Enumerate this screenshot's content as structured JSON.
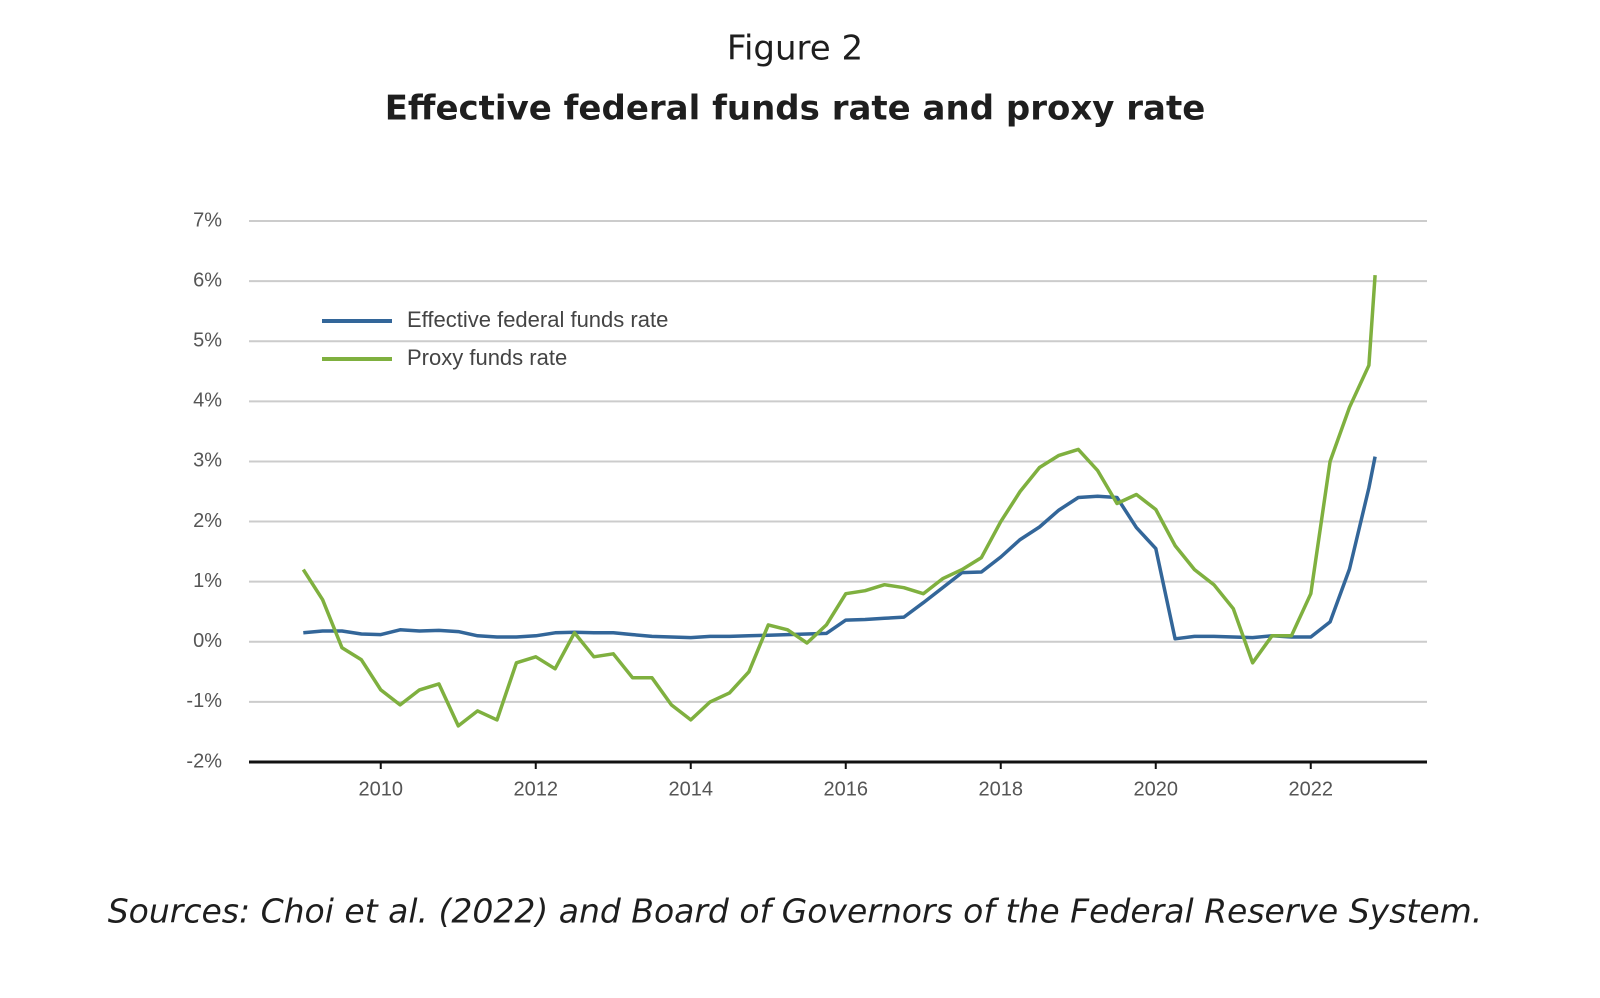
{
  "chart_data": {
    "type": "line",
    "figure_label": "Figure 2",
    "title": "Effective federal funds rate and proxy rate",
    "source": "Sources: Choi et al. (2022) and Board of Governors of the Federal Reserve System.",
    "x": [
      2009.0,
      2009.25,
      2009.5,
      2009.75,
      2010.0,
      2010.25,
      2010.5,
      2010.75,
      2011.0,
      2011.25,
      2011.5,
      2011.75,
      2012.0,
      2012.25,
      2012.5,
      2012.75,
      2013.0,
      2013.25,
      2013.5,
      2013.75,
      2014.0,
      2014.25,
      2014.5,
      2014.75,
      2015.0,
      2015.25,
      2015.5,
      2015.75,
      2016.0,
      2016.25,
      2016.5,
      2016.75,
      2017.0,
      2017.25,
      2017.5,
      2017.75,
      2018.0,
      2018.25,
      2018.5,
      2018.75,
      2019.0,
      2019.25,
      2019.5,
      2019.75,
      2020.0,
      2020.25,
      2020.5,
      2020.75,
      2021.0,
      2021.25,
      2021.5,
      2021.75,
      2022.0,
      2022.25,
      2022.5,
      2022.75,
      2022.83
    ],
    "series": [
      {
        "name": "Effective federal funds rate",
        "color": "#336699",
        "values": [
          0.15,
          0.18,
          0.18,
          0.13,
          0.12,
          0.2,
          0.18,
          0.19,
          0.17,
          0.1,
          0.08,
          0.08,
          0.1,
          0.15,
          0.16,
          0.15,
          0.15,
          0.12,
          0.09,
          0.08,
          0.07,
          0.09,
          0.09,
          0.1,
          0.11,
          0.12,
          0.13,
          0.14,
          0.36,
          0.37,
          0.39,
          0.41,
          0.65,
          0.9,
          1.15,
          1.16,
          1.41,
          1.7,
          1.91,
          2.19,
          2.4,
          2.42,
          2.4,
          1.9,
          1.55,
          0.05,
          0.09,
          0.09,
          0.08,
          0.07,
          0.1,
          0.08,
          0.08,
          0.33,
          1.21,
          2.56,
          3.08
        ]
      },
      {
        "name": "Proxy funds rate",
        "color": "#7fb03f",
        "values": [
          1.2,
          0.7,
          -0.1,
          -0.3,
          -0.8,
          -1.05,
          -0.8,
          -0.7,
          -1.4,
          -1.15,
          -1.3,
          -0.35,
          -0.25,
          -0.45,
          0.15,
          -0.25,
          -0.2,
          -0.6,
          -0.6,
          -1.05,
          -1.3,
          -1.0,
          -0.85,
          -0.5,
          0.28,
          0.2,
          -0.02,
          0.28,
          0.8,
          0.85,
          0.95,
          0.9,
          0.8,
          1.05,
          1.2,
          1.4,
          2.0,
          2.5,
          2.9,
          3.1,
          3.2,
          2.85,
          2.3,
          2.45,
          2.2,
          1.6,
          1.2,
          0.95,
          0.55,
          -0.35,
          0.1,
          0.1,
          0.8,
          3.0,
          3.9,
          4.6,
          6.1
        ]
      }
    ],
    "xlim": [
      2008.3,
      2023.5
    ],
    "xticks": [
      2010,
      2012,
      2014,
      2016,
      2018,
      2020,
      2022
    ],
    "ylim": [
      -2,
      7
    ],
    "yticks": [
      {
        "value": -2,
        "label": "-2%"
      },
      {
        "value": -1,
        "label": "-1%"
      },
      {
        "value": 0,
        "label": "0%"
      },
      {
        "value": 1,
        "label": "1%"
      },
      {
        "value": 2,
        "label": "2%"
      },
      {
        "value": 3,
        "label": "3%"
      },
      {
        "value": 4,
        "label": "4%"
      },
      {
        "value": 5,
        "label": "5%"
      },
      {
        "value": 6,
        "label": "6%"
      },
      {
        "value": 7,
        "label": "7%"
      }
    ],
    "grid": true,
    "legend": "upper left"
  }
}
